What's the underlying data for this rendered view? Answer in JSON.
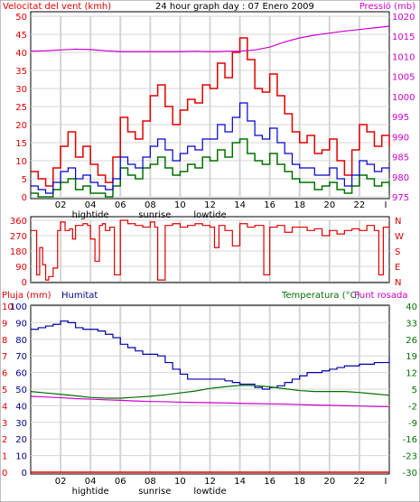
{
  "header": {
    "wind_label": "Velocitat del vent (kmh)",
    "title": "24 hour graph day : 07 Enero 2009",
    "pressure_label": "Pressió (mb)"
  },
  "lower_header": {
    "rain_label": "Pluja (mm)",
    "humidity_label": "Humitat",
    "temp_label": "Temperatura (°C)",
    "dew_label": "Punt rosada"
  },
  "hour_ticks": [
    "02",
    "04",
    "06",
    "08",
    "10",
    "12",
    "14",
    "16",
    "18",
    "20",
    "22"
  ],
  "tide_marks": [
    {
      "label": "hightide",
      "hour": 4
    },
    {
      "label": "sunrise",
      "hour": 8.3
    },
    {
      "label": "lowtide",
      "hour": 12
    },
    {
      "label": "hightide",
      "hour": 4,
      "panel": "lower"
    },
    {
      "label": "sunrise",
      "hour": 8.3,
      "panel": "lower"
    },
    {
      "label": "lowtide",
      "hour": 12,
      "panel": "lower"
    }
  ],
  "end_marker": "I",
  "colors": {
    "wind_gust": "#e00000",
    "wind_avg": "#0000cc",
    "wind_speed": "#007000",
    "pressure": "#cc00cc",
    "humidity": "#0000aa",
    "temperature": "#007000",
    "dewpoint": "#cc00cc",
    "rain": "#e00000",
    "grid": "#d4d4d4"
  },
  "chart_data": [
    {
      "type": "line",
      "name": "wind-and-pressure",
      "x_label": "hour",
      "xlim": [
        0,
        24
      ],
      "ylim_left": [
        0,
        50
      ],
      "left_ticks": [
        "0",
        "5",
        "10",
        "15",
        "20",
        "25",
        "30",
        "35",
        "40",
        "45",
        "50"
      ],
      "ylim_right": [
        975,
        1020
      ],
      "right_ticks": [
        "975",
        "980",
        "985",
        "990",
        "995",
        "1000",
        "1005",
        "1010",
        "1015",
        "1020"
      ],
      "grid": true,
      "series": [
        {
          "key": "gust",
          "axis": "left",
          "x": [
            0,
            0.5,
            1,
            1.5,
            2,
            2.5,
            3,
            3.5,
            4,
            4.5,
            5,
            5.5,
            6,
            6.5,
            7,
            7.5,
            8,
            8.5,
            9,
            9.5,
            10,
            10.5,
            11,
            11.5,
            12,
            12.5,
            13,
            13.5,
            14,
            14.5,
            15,
            15.5,
            16,
            16.5,
            17,
            17.5,
            18,
            18.5,
            19,
            19.5,
            20,
            20.5,
            21,
            21.5,
            22,
            22.5,
            23,
            23.5,
            24
          ],
          "values": [
            7,
            5,
            3,
            8,
            14,
            18,
            11,
            14,
            9,
            6,
            4,
            11,
            22,
            18,
            16,
            21,
            28,
            31,
            25,
            20,
            24,
            27,
            26,
            31,
            30,
            37,
            33,
            40,
            44,
            38,
            30,
            29,
            34,
            28,
            23,
            18,
            15,
            17,
            12,
            13,
            16,
            10,
            6,
            13,
            20,
            18,
            14,
            17,
            14
          ]
        },
        {
          "key": "avg",
          "axis": "left",
          "x": [
            0,
            0.5,
            1,
            1.5,
            2,
            2.5,
            3,
            3.5,
            4,
            4.5,
            5,
            5.5,
            6,
            6.5,
            7,
            7.5,
            8,
            8.5,
            9,
            9.5,
            10,
            10.5,
            11,
            11.5,
            12,
            12.5,
            13,
            13.5,
            14,
            14.5,
            15,
            15.5,
            16,
            16.5,
            17,
            17.5,
            18,
            18.5,
            19,
            19.5,
            20,
            20.5,
            21,
            21.5,
            22,
            22.5,
            23,
            23.5,
            24
          ],
          "values": [
            3,
            2,
            1,
            4,
            7,
            8,
            5,
            6,
            4,
            3,
            2,
            5,
            11,
            9,
            8,
            11,
            14,
            16,
            13,
            10,
            12,
            14,
            13,
            16,
            16,
            20,
            18,
            22,
            26,
            21,
            17,
            16,
            19,
            15,
            12,
            9,
            8,
            8,
            6,
            6,
            8,
            5,
            3,
            6,
            10,
            9,
            7,
            8,
            7
          ]
        },
        {
          "key": "speed",
          "axis": "left",
          "x": [
            0,
            0.5,
            1,
            1.5,
            2,
            2.5,
            3,
            3.5,
            4,
            4.5,
            5,
            5.5,
            6,
            6.5,
            7,
            7.5,
            8,
            8.5,
            9,
            9.5,
            10,
            10.5,
            11,
            11.5,
            12,
            12.5,
            13,
            13.5,
            14,
            14.5,
            15,
            15.5,
            16,
            16.5,
            17,
            17.5,
            18,
            18.5,
            19,
            19.5,
            20,
            20.5,
            21,
            21.5,
            22,
            22.5,
            23,
            23.5,
            24
          ],
          "values": [
            1,
            0,
            0,
            2,
            4,
            5,
            2,
            3,
            1,
            1,
            0,
            3,
            8,
            6,
            5,
            8,
            9,
            11,
            8,
            6,
            7,
            9,
            8,
            11,
            10,
            13,
            11,
            15,
            16,
            12,
            10,
            9,
            12,
            9,
            7,
            5,
            4,
            4,
            2,
            3,
            4,
            2,
            1,
            3,
            6,
            5,
            3,
            4,
            3
          ]
        },
        {
          "key": "pressure",
          "axis": "right",
          "x": [
            0,
            1,
            2,
            3,
            4,
            5,
            6,
            7,
            8,
            9,
            10,
            11,
            12,
            12.5,
            13,
            14,
            15,
            16,
            17,
            18,
            19,
            20,
            21,
            22,
            23,
            24
          ],
          "values": [
            1011.3,
            1011.4,
            1011.6,
            1011.8,
            1011.7,
            1011.4,
            1011.2,
            1011.2,
            1011.2,
            1011.2,
            1011.2,
            1011.3,
            1011.2,
            1011.2,
            1011.3,
            1011.3,
            1011.6,
            1012.3,
            1013.6,
            1014.6,
            1015.3,
            1015.8,
            1016.3,
            1016.7,
            1017.1,
            1017.5
          ]
        }
      ]
    },
    {
      "type": "line",
      "name": "wind-direction",
      "xlim": [
        0,
        24
      ],
      "ylim": [
        0,
        360
      ],
      "left_ticks": [
        "0",
        "90",
        "180",
        "270",
        "360"
      ],
      "right_ticks": [
        "N",
        "E",
        "S",
        "W",
        "N"
      ],
      "series": [
        {
          "key": "direction",
          "x": [
            0,
            0.4,
            0.6,
            0.8,
            1,
            1.2,
            1.5,
            1.8,
            2,
            2.3,
            2.6,
            2.8,
            3,
            3.5,
            3.8,
            4,
            4.3,
            4.6,
            4.8,
            5,
            5.3,
            5.6,
            6,
            6.5,
            7,
            7.5,
            8,
            8.3,
            8.5,
            9,
            9.5,
            10,
            10.5,
            11,
            11.5,
            12,
            12.3,
            12.6,
            13,
            13.5,
            14,
            14.5,
            15,
            15.3,
            15.6,
            16,
            16.5,
            17,
            17.5,
            18,
            18.5,
            19,
            19.5,
            20,
            20.5,
            21,
            21.5,
            22,
            22.5,
            23,
            23.3,
            23.6,
            24
          ],
          "values": [
            300,
            40,
            200,
            100,
            10,
            30,
            80,
            300,
            350,
            300,
            310,
            250,
            330,
            340,
            330,
            250,
            120,
            330,
            340,
            300,
            320,
            40,
            360,
            340,
            330,
            320,
            350,
            320,
            10,
            330,
            340,
            320,
            330,
            340,
            330,
            320,
            200,
            330,
            300,
            210,
            340,
            320,
            330,
            330,
            40,
            320,
            330,
            290,
            320,
            320,
            300,
            310,
            270,
            300,
            280,
            300,
            310,
            300,
            330,
            300,
            40,
            320,
            300
          ]
        }
      ]
    },
    {
      "type": "line",
      "name": "rain-humidity-temperature",
      "xlim": [
        0,
        24
      ],
      "ylim_left": [
        0,
        100
      ],
      "rain_ticks": [
        "0",
        "1",
        "2",
        "3",
        "4",
        "5",
        "6",
        "7",
        "8",
        "9",
        "10"
      ],
      "humidity_ticks": [
        "0",
        "10",
        "20",
        "30",
        "40",
        "50",
        "60",
        "70",
        "80",
        "90",
        "100"
      ],
      "ylim_right": [
        -30,
        40
      ],
      "right_ticks": [
        "-30",
        "-23",
        "-16",
        "-9",
        "-2",
        "5",
        "12",
        "19",
        "26",
        "33",
        "40"
      ],
      "grid": true,
      "series": [
        {
          "key": "humidity",
          "axis": "left",
          "x": [
            0,
            0.5,
            1,
            1.5,
            2,
            2.5,
            3,
            3.5,
            4,
            4.5,
            5,
            5.5,
            6,
            6.5,
            7,
            7.5,
            8,
            8.5,
            9,
            9.5,
            10,
            10.5,
            11,
            11.5,
            12,
            12.5,
            13,
            13.5,
            14,
            14.5,
            15,
            15.5,
            16,
            16.5,
            17,
            17.5,
            18,
            18.5,
            19,
            19.5,
            20,
            20.5,
            21,
            21.5,
            22,
            22.5,
            23,
            23.5,
            24
          ],
          "values": [
            86,
            87,
            88,
            89,
            91,
            90,
            87,
            86,
            86,
            85,
            83,
            81,
            77,
            75,
            73,
            71,
            71,
            70,
            66,
            62,
            59,
            56,
            56,
            56,
            56,
            56,
            55,
            54,
            53,
            53,
            51,
            50,
            51,
            52,
            54,
            56,
            58,
            60,
            60,
            61,
            62,
            63,
            64,
            64,
            65,
            65,
            66,
            66,
            70
          ]
        },
        {
          "key": "temperature",
          "axis": "right",
          "x": [
            0,
            1,
            2,
            3,
            4,
            5,
            6,
            7,
            8,
            9,
            10,
            11,
            12,
            13,
            14,
            15,
            16,
            17,
            18,
            19,
            20,
            21,
            22,
            23,
            24
          ],
          "values": [
            4.0,
            3.4,
            2.8,
            2.2,
            1.5,
            1.2,
            1.2,
            1.6,
            2.0,
            2.6,
            3.4,
            4.2,
            5.3,
            6.0,
            6.6,
            6.5,
            6.0,
            5.2,
            4.4,
            4.0,
            4.0,
            4.0,
            3.6,
            3.0,
            2.4
          ]
        },
        {
          "key": "dewpoint",
          "axis": "right",
          "x": [
            0,
            1,
            2,
            3,
            4,
            5,
            6,
            7,
            8,
            9,
            10,
            11,
            12,
            13,
            14,
            15,
            16,
            17,
            18,
            19,
            20,
            21,
            22,
            23,
            24
          ],
          "values": [
            2.0,
            1.7,
            1.4,
            1.0,
            0.8,
            0.5,
            0.3,
            0.0,
            -0.2,
            -0.3,
            -0.5,
            -0.6,
            -0.7,
            -0.8,
            -1.0,
            -1.1,
            -1.2,
            -1.3,
            -1.5,
            -1.7,
            -1.8,
            -2.0,
            -2.1,
            -2.3,
            -2.4
          ]
        },
        {
          "key": "rain",
          "axis": "left",
          "x": [
            0,
            24
          ],
          "values": [
            0,
            0
          ]
        }
      ]
    }
  ]
}
